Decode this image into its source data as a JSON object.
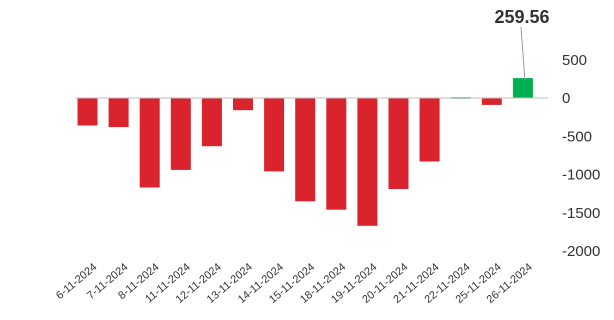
{
  "chart_data": {
    "type": "bar",
    "title": "",
    "xlabel": "",
    "ylabel": "",
    "categories": [
      "6-11-2024",
      "7-11-2024",
      "8-11-2024",
      "11-11-2024",
      "12-11-2024",
      "13-11-2024",
      "14-11-2024",
      "15-11-2024",
      "18-11-2024",
      "19-11-2024",
      "20-11-2024",
      "21-11-2024",
      "22-11-2024",
      "25-11-2024",
      "26-11-2024"
    ],
    "values": [
      -360,
      -380,
      -1170,
      -940,
      -630,
      -160,
      -960,
      -1350,
      -1460,
      -1670,
      -1190,
      -830,
      10,
      -90,
      259.56
    ],
    "ylim": [
      -2000,
      800
    ],
    "yticks": [
      500,
      0,
      -500,
      -1000,
      -1500,
      -2000
    ],
    "yaxis_position": "right",
    "grid": false,
    "colors": {
      "positive": "#00b050",
      "negative": "#d9232d"
    },
    "callout": {
      "category": "26-11-2024",
      "label": "259.56"
    }
  }
}
